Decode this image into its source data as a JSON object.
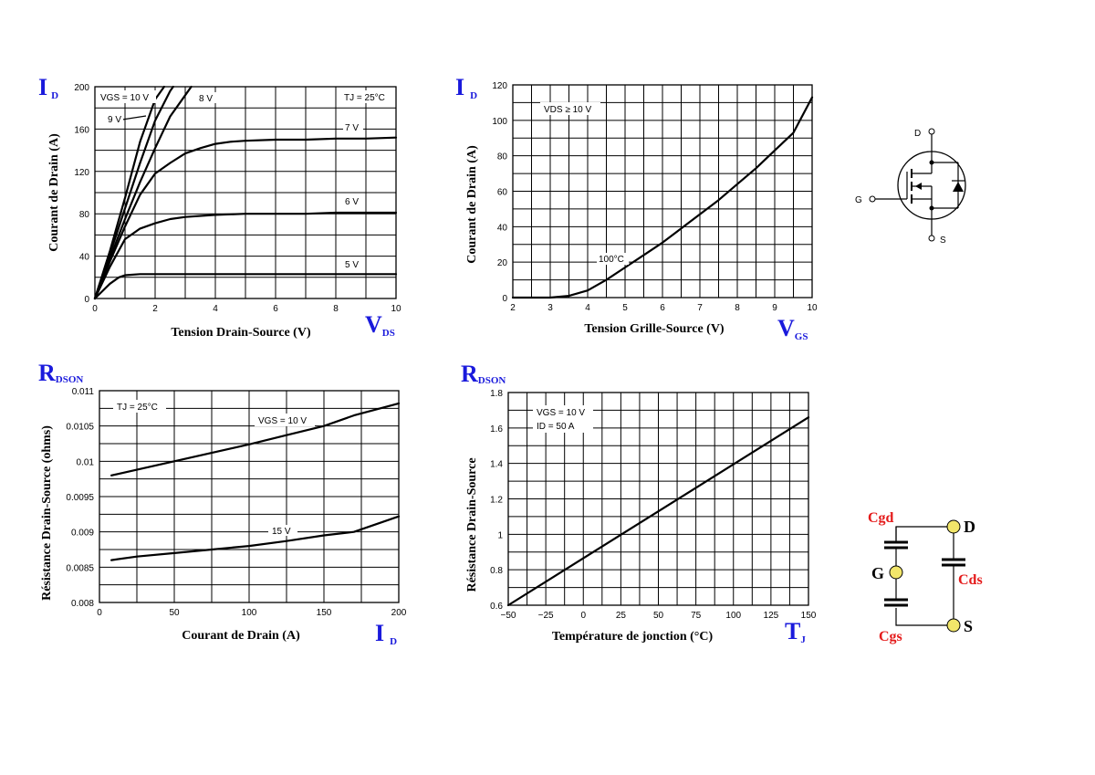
{
  "chart_data": [
    {
      "id": "c1",
      "type": "line",
      "corner_main": "I",
      "corner_sub": "D",
      "xcorner_main": "V",
      "xcorner_sub": "DS",
      "ylabel": "Courant de Drain (A)",
      "xlabel": "Tension Drain-Source (V)",
      "xlim": [
        0,
        10
      ],
      "ylim": [
        0,
        200
      ],
      "xticks": [
        0,
        2,
        4,
        6,
        8,
        10
      ],
      "yticks": [
        0,
        40,
        80,
        120,
        160,
        200
      ],
      "xgrid_step": 1,
      "ygrid_step": 20,
      "annotations": [
        "VGS = 10 V",
        "9 V",
        "8 V",
        "TJ = 25°C",
        "7 V",
        "6 V",
        "5 V"
      ],
      "series": [
        {
          "name": "VGS = 10 V",
          "x": [
            0,
            0.5,
            1,
            1.5,
            2,
            2.3
          ],
          "y": [
            0,
            45,
            95,
            148,
            188,
            200
          ]
        },
        {
          "name": "9 V",
          "x": [
            0,
            0.5,
            1,
            1.5,
            2,
            2.5,
            2.6
          ],
          "y": [
            0,
            42,
            85,
            128,
            168,
            196,
            200
          ]
        },
        {
          "name": "8 V",
          "x": [
            0,
            0.5,
            1,
            1.5,
            2,
            2.5,
            3,
            3.2
          ],
          "y": [
            0,
            38,
            75,
            110,
            142,
            172,
            192,
            200
          ]
        },
        {
          "name": "7 V",
          "x": [
            0,
            0.5,
            1,
            1.5,
            2,
            2.5,
            3,
            3.5,
            4,
            4.5,
            5,
            6,
            7,
            8,
            9,
            10
          ],
          "y": [
            0,
            35,
            68,
            98,
            118,
            128,
            137,
            142,
            146,
            148,
            149,
            150,
            150,
            151,
            151,
            152
          ]
        },
        {
          "name": "6 V",
          "x": [
            0,
            0.5,
            1,
            1.5,
            2,
            2.5,
            3,
            4,
            5,
            6,
            7,
            8,
            9,
            10
          ],
          "y": [
            0,
            30,
            56,
            66,
            71,
            75,
            77,
            79,
            80,
            80,
            80,
            81,
            81,
            81
          ]
        },
        {
          "name": "5 V",
          "x": [
            0,
            0.5,
            0.8,
            1,
            1.5,
            2,
            3,
            4,
            5,
            6,
            7,
            8,
            9,
            10
          ],
          "y": [
            0,
            14,
            20,
            22,
            23,
            23,
            23,
            23,
            23,
            23,
            23,
            23,
            23,
            23
          ]
        }
      ]
    },
    {
      "id": "c2",
      "type": "line",
      "corner_main": "I",
      "corner_sub": "D",
      "xcorner_main": "V",
      "xcorner_sub": "GS",
      "ylabel": "Courant de Drain (A)",
      "xlabel": "Tension Grille-Source (V)",
      "xlim": [
        2,
        10
      ],
      "ylim": [
        0,
        120
      ],
      "xticks": [
        2,
        3,
        4,
        5,
        6,
        7,
        8,
        9,
        10
      ],
      "yticks": [
        0,
        20,
        40,
        60,
        80,
        100,
        120
      ],
      "xgrid_step": 0.5,
      "ygrid_step": 10,
      "annotations": [
        "VDS ≥ 10 V",
        "100°C"
      ],
      "series": [
        {
          "name": "100°C",
          "x": [
            2,
            3,
            3.5,
            4,
            4.5,
            5,
            5.5,
            6,
            6.5,
            7,
            7.5,
            8,
            8.5,
            9,
            9.5,
            10
          ],
          "y": [
            0,
            0,
            1,
            4,
            10,
            17,
            24,
            31,
            39,
            47,
            55,
            64,
            73,
            83,
            93,
            113
          ]
        }
      ]
    },
    {
      "id": "c3",
      "type": "line",
      "corner_main": "R",
      "corner_sub": "DSON",
      "xcorner_main": "I",
      "xcorner_sub": "D",
      "ylabel": "Résistance Drain-Source (ohms)",
      "xlabel": "Courant de Drain (A)",
      "xlim": [
        0,
        200
      ],
      "ylim": [
        0.008,
        0.011
      ],
      "xticks": [
        0,
        50,
        100,
        150,
        200
      ],
      "yticks": [
        0.008,
        0.0085,
        0.009,
        0.0095,
        0.01,
        0.0105,
        0.011
      ],
      "ytick_labels": [
        "0.008",
        "0.0085",
        "0.009",
        "0.0095",
        "0.01",
        "0.0105",
        "0.011"
      ],
      "xgrid_step": 25,
      "ygrid_step": 0.00025,
      "annotations": [
        "TJ = 25°C",
        "VGS = 10 V",
        "15 V"
      ],
      "series": [
        {
          "name": "VGS = 10 V",
          "x": [
            8,
            25,
            50,
            75,
            100,
            125,
            150,
            170,
            200
          ],
          "y": [
            0.0098,
            0.00988,
            0.01,
            0.01012,
            0.01024,
            0.01037,
            0.0105,
            0.01065,
            0.01082
          ]
        },
        {
          "name": "15 V",
          "x": [
            8,
            25,
            50,
            75,
            100,
            125,
            150,
            170,
            200
          ],
          "y": [
            0.0086,
            0.00865,
            0.0087,
            0.00875,
            0.0088,
            0.00887,
            0.00895,
            0.009,
            0.00922
          ]
        }
      ]
    },
    {
      "id": "c4",
      "type": "line",
      "corner_main": "R",
      "corner_sub": "DSON",
      "xcorner_main": "T",
      "xcorner_sub": "J",
      "ylabel": "Résistance Drain-Source",
      "xlabel": "Température de jonction (°C)",
      "xlim": [
        -50,
        150
      ],
      "ylim": [
        0.6,
        1.8
      ],
      "xticks": [
        -50,
        -25,
        0,
        25,
        50,
        75,
        100,
        125,
        150
      ],
      "xtick_labels": [
        "−50",
        "−25",
        "0",
        "25",
        "50",
        "75",
        "100",
        "125",
        "150"
      ],
      "yticks": [
        0.6,
        0.8,
        1,
        1.2,
        1.4,
        1.6,
        1.8
      ],
      "ytick_labels": [
        "0.6",
        "0.8",
        "1",
        "1.2",
        "1.4",
        "1.6",
        "1.8"
      ],
      "xgrid_step": 12.5,
      "ygrid_step": 0.1,
      "annotations": [
        "VGS = 10 V",
        "ID = 50 A"
      ],
      "series": [
        {
          "name": "",
          "x": [
            -50,
            150
          ],
          "y": [
            0.6,
            1.66
          ]
        }
      ]
    }
  ],
  "mosfet_symbol": {
    "drain": "D",
    "gate": "G",
    "source": "S"
  },
  "capacitance_model": {
    "cgd": "Cgd",
    "cds": "Cds",
    "cgs": "Cgs",
    "drain": "D",
    "gate": "G",
    "source": "S",
    "node_color": "#f2e66a",
    "label_color": "#e41a1a"
  }
}
